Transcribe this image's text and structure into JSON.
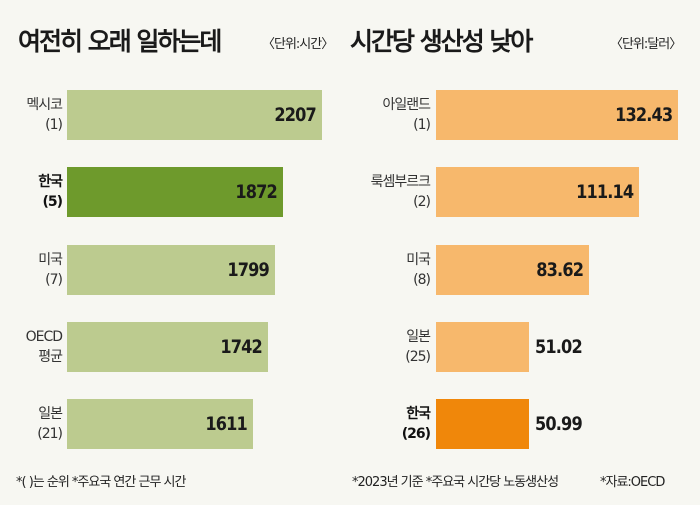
{
  "chart_data": [
    {
      "type": "bar",
      "orientation": "horizontal",
      "title": "여전히 오래 일하는데",
      "unit": "〈단위:시간〉",
      "categories": [
        "멕시코",
        "한국",
        "미국",
        "OECD",
        "일본"
      ],
      "sublabels": [
        "(1)",
        "(5)",
        "(7)",
        "평균",
        "(21)"
      ],
      "values": [
        2207,
        1872,
        1799,
        1742,
        1611
      ],
      "value_labels": [
        "2207",
        "1872",
        "1799",
        "1742",
        "1611"
      ],
      "highlight_index": 1,
      "color": "#bccb8f",
      "highlight_color": "#6e9a2c"
    },
    {
      "type": "bar",
      "orientation": "horizontal",
      "title": "시간당 생산성 낮아",
      "unit": "〈단위:달러〉",
      "categories": [
        "아일랜드",
        "룩셈부르크",
        "미국",
        "일본",
        "한국"
      ],
      "sublabels": [
        "(1)",
        "(2)",
        "(8)",
        "(25)",
        "(26)"
      ],
      "values": [
        132.43,
        111.14,
        83.62,
        51.02,
        50.99
      ],
      "value_labels": [
        "132.43",
        "111.14",
        "83.62",
        "51.02",
        "50.99"
      ],
      "highlight_index": 4,
      "color": "#f7b86c",
      "highlight_color": "#f0870a"
    }
  ],
  "footnotes": {
    "left": "*(   )는 순위  *주요국 연간 근무 시간",
    "right_a": "*2023년 기준  *주요국 시간당 노동생산성",
    "right_b": "*자료:OECD"
  }
}
